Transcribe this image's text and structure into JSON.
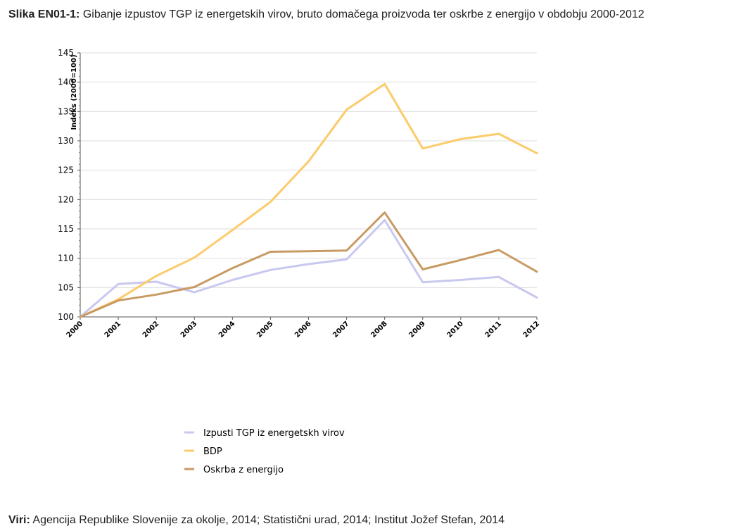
{
  "caption": {
    "lead": "Slika EN01-1:",
    "text": " Gibanje izpustov TGP iz energetskih virov, bruto domačega proizvoda ter oskrbe z energijo v obdobju 2000-2012"
  },
  "sources": {
    "lead": "Viri:",
    "text": " Agencija Republike Slovenije za okolje, 2014; Statistični urad, 2014; Institut Jožef Stefan, 2014"
  },
  "chart_data": {
    "type": "line",
    "title": "",
    "xlabel": "",
    "ylabel": "Indeks (2000=100)",
    "x": [
      "2000",
      "2001",
      "2002",
      "2003",
      "2004",
      "2005",
      "2006",
      "2007",
      "2008",
      "2009",
      "2010",
      "2011",
      "2012"
    ],
    "ylim": [
      100,
      145
    ],
    "yticks": [
      100,
      105,
      110,
      115,
      120,
      125,
      130,
      135,
      140,
      145
    ],
    "grid": true,
    "legend_position": "bottom",
    "series": [
      {
        "name": "Izpusti TGP iz energetskh virov",
        "color": "#c8c8f0",
        "values": [
          100,
          105.6,
          106,
          104.2,
          106.3,
          108,
          109,
          109.8,
          116.5,
          105.9,
          106.3,
          106.8,
          103.3
        ]
      },
      {
        "name": "BDP",
        "color": "#fccb6a",
        "values": [
          100,
          103,
          107,
          110.1,
          114.8,
          119.6,
          126.5,
          135.3,
          139.7,
          128.7,
          130.3,
          131.2,
          127.9
        ]
      },
      {
        "name": "Oskrba z energijo",
        "color": "#c89a64",
        "values": [
          100,
          102.8,
          103.8,
          105.1,
          108.3,
          111.1,
          111.2,
          111.3,
          117.8,
          108.1,
          109.7,
          111.4,
          107.7
        ]
      }
    ]
  }
}
